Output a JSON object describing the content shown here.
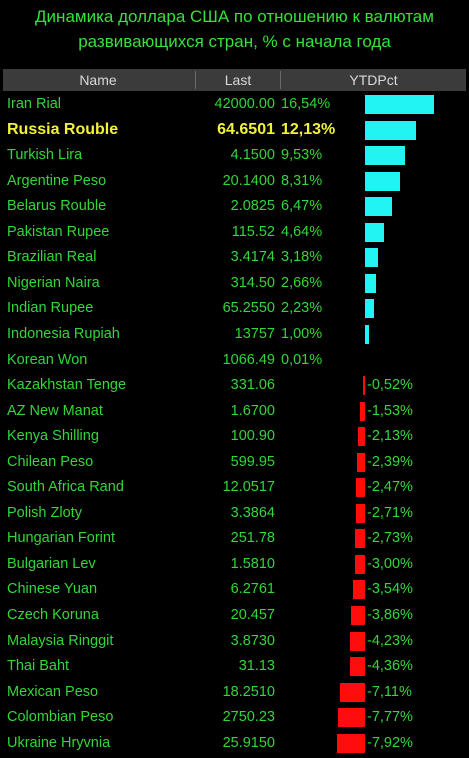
{
  "title": "Динамика доллара США по отношению к валютам развивающихся стран, % с начала года",
  "columns": [
    "Name",
    "Last",
    "YTDPct"
  ],
  "highlight": "Russia Rouble",
  "colors": {
    "positive_bar": "#22f3f3",
    "negative_bar": "#ff0d0d",
    "text": "#33d63a",
    "highlight_text": "#f2f23a",
    "header_bg": "#3b3b3b"
  },
  "chart_data": {
    "type": "bar",
    "categories": [
      "Iran Rial",
      "Russia Rouble",
      "Turkish Lira",
      "Argentine Peso",
      "Belarus Rouble",
      "Pakistan Rupee",
      "Brazilian Real",
      "Nigerian Naira",
      "Indian Rupee",
      "Indonesia Rupiah",
      "Korean Won",
      "Kazakhstan Tenge",
      "AZ New Manat",
      "Kenya Shilling",
      "Chilean Peso",
      "South Africa Rand",
      "Polish Zloty",
      "Hungarian Forint",
      "Bulgarian Lev",
      "Chinese Yuan",
      "Czech Koruna",
      "Malaysia Ringgit",
      "Thai Baht",
      "Mexican Peso",
      "Colombian Peso",
      "Ukraine Hryvnia"
    ],
    "last": [
      "42000.00",
      "64.6501",
      "4.1500",
      "20.1400",
      "2.0825",
      "115.52",
      "3.4174",
      "314.50",
      "65.2550",
      "13757",
      "1066.49",
      "331.06",
      "1.6700",
      "100.90",
      "599.95",
      "12.0517",
      "3.3864",
      "251.78",
      "1.5810",
      "6.2761",
      "20.457",
      "3.8730",
      "31.13",
      "18.2510",
      "2750.23",
      "25.9150"
    ],
    "pct_labels": [
      "16,54%",
      "12,13%",
      "9,53%",
      "8,31%",
      "6,47%",
      "4,64%",
      "3,18%",
      "2,66%",
      "2,23%",
      "1,00%",
      "0,01%",
      "-0,52%",
      "-1,53%",
      "-2,13%",
      "-2,39%",
      "-2,47%",
      "-2,71%",
      "-2,73%",
      "-3,00%",
      "-3,54%",
      "-3,86%",
      "-4,23%",
      "-4,36%",
      "-7,11%",
      "-7,77%",
      "-7,92%"
    ],
    "values": [
      16.54,
      12.13,
      9.53,
      8.31,
      6.47,
      4.64,
      3.18,
      2.66,
      2.23,
      1.0,
      0.01,
      -0.52,
      -1.53,
      -2.13,
      -2.39,
      -2.47,
      -2.71,
      -2.73,
      -3.0,
      -3.54,
      -3.86,
      -4.23,
      -4.36,
      -7.11,
      -7.77,
      -7.92
    ]
  }
}
